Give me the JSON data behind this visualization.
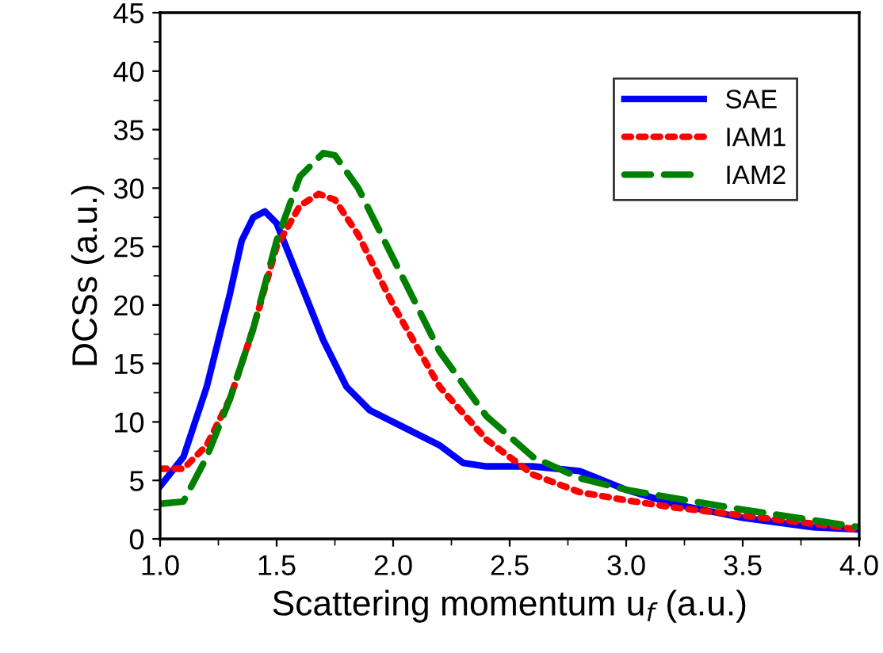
{
  "chart_data": {
    "type": "line",
    "xlabel": "Scattering momentum u$_{f}$ (a.u.)",
    "ylabel": "DCSs (a.u.)",
    "xlim": [
      1.0,
      4.0
    ],
    "xticks": [
      {
        "value": 1.0,
        "label": "1.0"
      },
      1.5,
      {
        "value": 2.0,
        "label": "2.0"
      },
      2.5,
      {
        "value": 3.0,
        "label": "3.0"
      },
      3.5,
      {
        "value": 4.0,
        "label": "4.0"
      }
    ],
    "ylim": [
      0,
      45
    ],
    "yticks": [
      0,
      5,
      10,
      15,
      20,
      25,
      30,
      35,
      40,
      45
    ],
    "grid": false,
    "legend": "top right",
    "marker": "none",
    "series": [
      {
        "name": "SAE",
        "color": "#0000ff",
        "line_style": "solid",
        "x": [
          1.0,
          1.1,
          1.2,
          1.3,
          1.35,
          1.4,
          1.45,
          1.5,
          1.6,
          1.7,
          1.8,
          1.9,
          2.0,
          2.2,
          2.3,
          2.4,
          2.6,
          2.8,
          3.0,
          3.2,
          3.5,
          3.8,
          4.0
        ],
        "values": [
          4.5,
          7,
          13,
          21,
          25.5,
          27.5,
          28,
          27,
          22,
          17,
          13,
          11,
          10,
          8,
          6.5,
          6.2,
          6.2,
          5.8,
          4.2,
          3,
          1.8,
          1,
          0.8
        ]
      },
      {
        "name": "IAM1",
        "color": "#ff0000",
        "line_style": "dotted",
        "x": [
          1.0,
          1.1,
          1.2,
          1.3,
          1.4,
          1.5,
          1.6,
          1.68,
          1.75,
          1.85,
          2.0,
          2.2,
          2.4,
          2.6,
          2.8,
          3.0,
          3.2,
          3.5,
          3.8,
          4.0
        ],
        "values": [
          6,
          6,
          8,
          12,
          18,
          25,
          28.5,
          29.5,
          29,
          26,
          20,
          13,
          8.5,
          5.5,
          4,
          3.3,
          2.7,
          2,
          1.3,
          0.8
        ]
      },
      {
        "name": "IAM2",
        "color": "#008000",
        "line_style": "dashed",
        "x": [
          1.0,
          1.1,
          1.2,
          1.3,
          1.4,
          1.5,
          1.6,
          1.7,
          1.75,
          1.85,
          2.0,
          2.2,
          2.4,
          2.6,
          2.8,
          3.0,
          3.2,
          3.5,
          3.8,
          4.0
        ],
        "values": [
          3,
          3.2,
          7,
          12,
          18,
          25.5,
          31,
          33,
          32.8,
          30,
          24,
          16,
          10.5,
          7,
          5.2,
          4.2,
          3.5,
          2.5,
          1.6,
          1.0
        ]
      }
    ]
  }
}
